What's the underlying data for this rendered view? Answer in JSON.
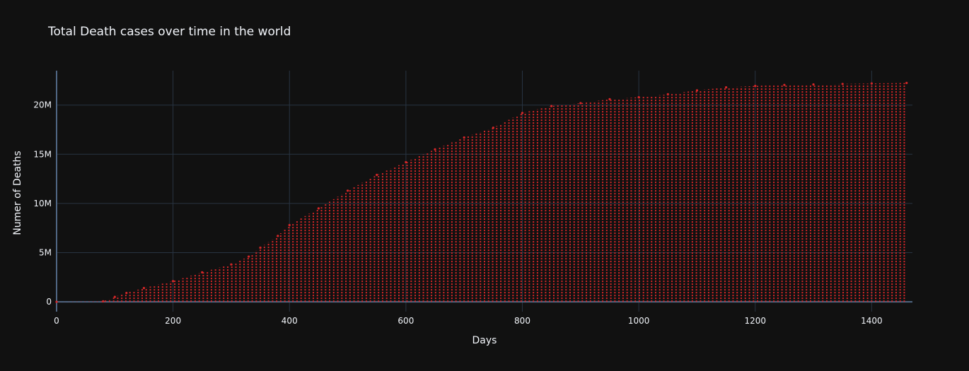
{
  "colors": {
    "background": "#111111",
    "grid": "#283442",
    "zeroline": "#506784",
    "series": "#d62728",
    "text": "#f2f5fa"
  },
  "chart_data": {
    "type": "line",
    "title": "Total Death cases over time in the world",
    "xlabel": "Days",
    "ylabel": "Numer of Deaths",
    "xlim": [
      0,
      1470
    ],
    "ylim": [
      -1000000,
      23500000
    ],
    "x_ticks": [
      0,
      200,
      400,
      600,
      800,
      1000,
      1200,
      1400
    ],
    "x_tick_labels": [
      "0",
      "200",
      "400",
      "600",
      "800",
      "1000",
      "1200",
      "1400"
    ],
    "y_ticks": [
      0,
      5000000,
      10000000,
      15000000,
      20000000
    ],
    "y_tick_labels": [
      "0",
      "5M",
      "10M",
      "15M",
      "20M"
    ],
    "grid": true,
    "line_style": "dotted",
    "series": [
      {
        "color": "#d62728",
        "x": [
          0,
          80,
          100,
          120,
          150,
          200,
          250,
          300,
          330,
          350,
          380,
          400,
          450,
          500,
          550,
          600,
          650,
          700,
          750,
          800,
          850,
          900,
          950,
          1000,
          1050,
          1100,
          1150,
          1200,
          1250,
          1300,
          1350,
          1400,
          1460
        ],
        "y": [
          0,
          50000,
          500000,
          900000,
          1400000,
          2100000,
          3000000,
          3800000,
          4600000,
          5500000,
          6700000,
          7800000,
          9500000,
          11300000,
          12900000,
          14200000,
          15500000,
          16700000,
          17700000,
          19200000,
          19900000,
          20200000,
          20600000,
          20800000,
          21100000,
          21500000,
          21800000,
          21950000,
          22050000,
          22100000,
          22150000,
          22200000,
          22250000
        ]
      }
    ]
  }
}
